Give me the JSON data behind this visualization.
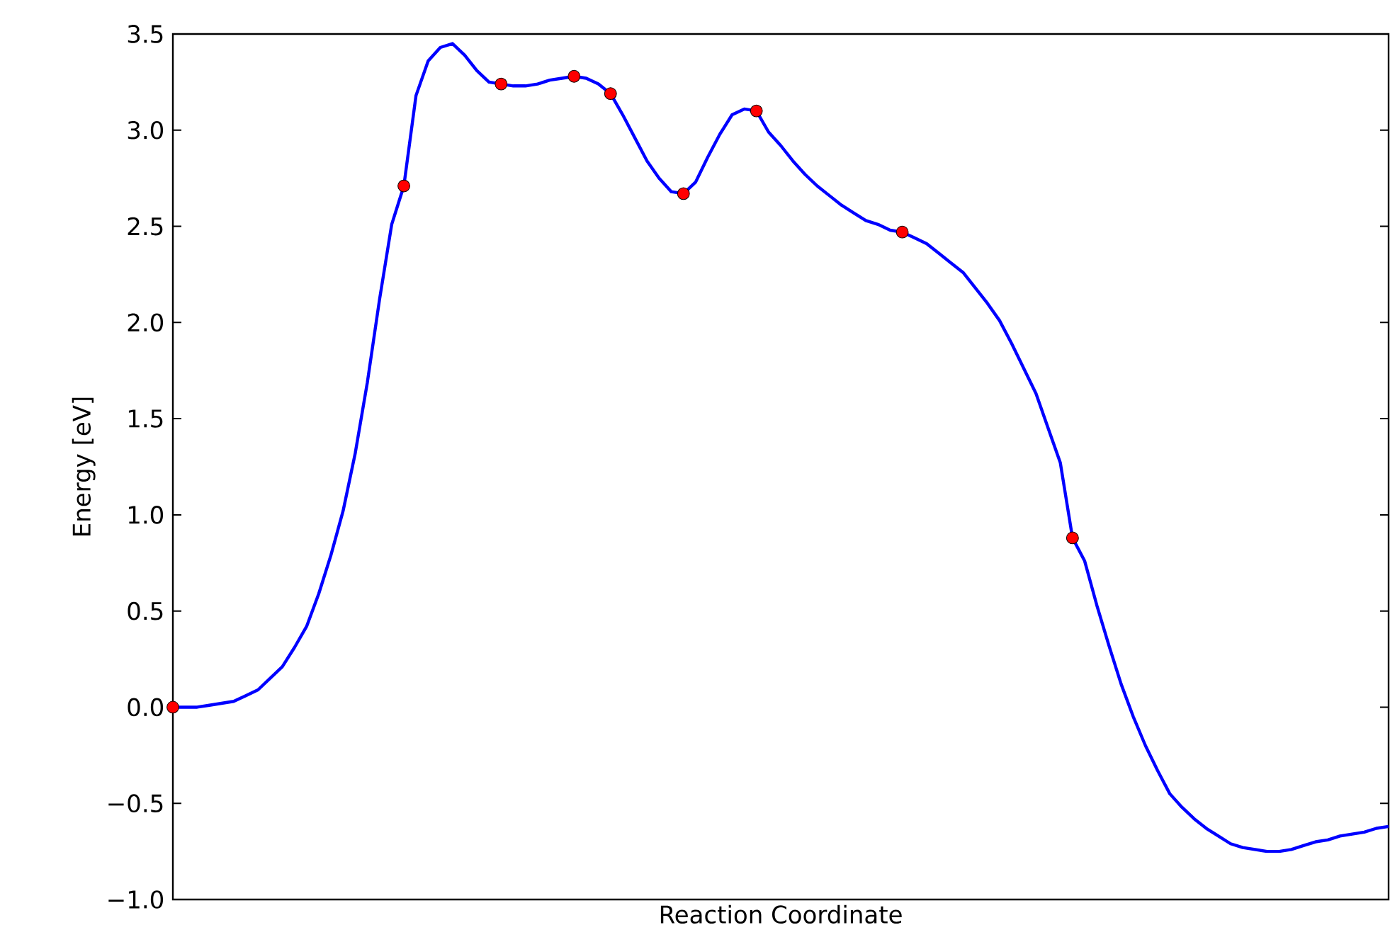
{
  "chart_data": {
    "type": "line",
    "xlabel": "Reaction Coordinate",
    "ylabel": "Energy [eV]",
    "ylim": [
      -1.0,
      3.5
    ],
    "yticks": [
      {
        "value": -1.0,
        "label": "−1.0"
      },
      {
        "value": -0.5,
        "label": "−0.5"
      },
      {
        "value": 0,
        "label": "0.0"
      },
      {
        "value": 0.5,
        "label": "0.5"
      },
      {
        "value": 1.0,
        "label": "1.0"
      },
      {
        "value": 1.5,
        "label": "1.5"
      },
      {
        "value": 2.0,
        "label": "2.0"
      },
      {
        "value": 2.5,
        "label": "2.5"
      },
      {
        "value": 3.0,
        "label": "3.0"
      },
      {
        "value": 3.5,
        "label": "3.5"
      }
    ],
    "tick_labels": "y",
    "grid": false,
    "categories": [
      null,
      null,
      null,
      null,
      null,
      null,
      null,
      null,
      null,
      null,
      null,
      null,
      null,
      null,
      null,
      null,
      null,
      null,
      null,
      null,
      null,
      null,
      null,
      null,
      null,
      null,
      null,
      null,
      null,
      null,
      null,
      null,
      null,
      null,
      null,
      null,
      null,
      null,
      null,
      null,
      null,
      null,
      null,
      null,
      null,
      null,
      null,
      null,
      null,
      null,
      null,
      null,
      null,
      null,
      null,
      null,
      null,
      null,
      null,
      null,
      null,
      null,
      null,
      null,
      null,
      null,
      null,
      null,
      null,
      null,
      null,
      null,
      null,
      null,
      null,
      null,
      null,
      null,
      null,
      null,
      null,
      null,
      null,
      null,
      null,
      null,
      null,
      null,
      null,
      null,
      null,
      null,
      null,
      null,
      null,
      null,
      null,
      null,
      null,
      null,
      null
    ],
    "series": [
      {
        "color": "#0000ff",
        "marker": "none",
        "line_style": "solid",
        "values": [
          0,
          0,
          0,
          0.01,
          0.02,
          0.03,
          0.06,
          0.09,
          0.15,
          0.21,
          0.31,
          0.42,
          0.59,
          0.79,
          1.02,
          1.32,
          1.69,
          2.12,
          2.51,
          2.71,
          3.18,
          3.36,
          3.43,
          3.45,
          3.39,
          3.31,
          3.25,
          3.24,
          3.23,
          3.23,
          3.24,
          3.26,
          3.27,
          3.28,
          3.27,
          3.24,
          3.19,
          3.08,
          2.96,
          2.84,
          2.75,
          2.68,
          2.67,
          2.73,
          2.86,
          2.98,
          3.08,
          3.11,
          3.1,
          2.99,
          2.92,
          2.84,
          2.77,
          2.71,
          2.66,
          2.61,
          2.57,
          2.53,
          2.51,
          2.48,
          2.47,
          2.44,
          2.41,
          2.36,
          2.31,
          2.26,
          2.18,
          2.1,
          2.01,
          1.89,
          1.76,
          1.63,
          1.45,
          1.27,
          0.88,
          0.76,
          0.53,
          0.32,
          0.12,
          -0.05,
          -0.2,
          -0.33,
          -0.45,
          -0.52,
          -0.58,
          -0.63,
          -0.67,
          -0.71,
          -0.73,
          -0.74,
          -0.75,
          -0.75,
          -0.74,
          -0.72,
          -0.7,
          -0.69,
          -0.67,
          -0.66,
          -0.65,
          -0.63,
          -0.62
        ]
      },
      {
        "type": "scatter",
        "color": "#ff0000",
        "marker": "circle",
        "values": [
          0,
          null,
          null,
          null,
          null,
          null,
          null,
          null,
          null,
          null,
          null,
          null,
          null,
          null,
          null,
          null,
          null,
          null,
          null,
          2.71,
          null,
          null,
          null,
          null,
          null,
          null,
          null,
          3.24,
          null,
          null,
          null,
          null,
          null,
          3.28,
          null,
          null,
          3.19,
          null,
          null,
          null,
          null,
          null,
          2.67,
          null,
          null,
          null,
          null,
          null,
          3.1,
          null,
          null,
          null,
          null,
          null,
          null,
          null,
          null,
          null,
          null,
          null,
          2.47,
          null,
          null,
          null,
          null,
          null,
          null,
          null,
          null,
          null,
          null,
          null,
          null,
          null,
          0.88,
          null,
          null,
          null,
          null,
          null,
          null,
          null,
          null,
          null,
          null,
          null,
          null,
          null,
          null,
          null,
          null,
          null,
          null,
          null,
          null,
          null,
          null,
          null,
          null,
          null,
          null
        ]
      }
    ]
  }
}
